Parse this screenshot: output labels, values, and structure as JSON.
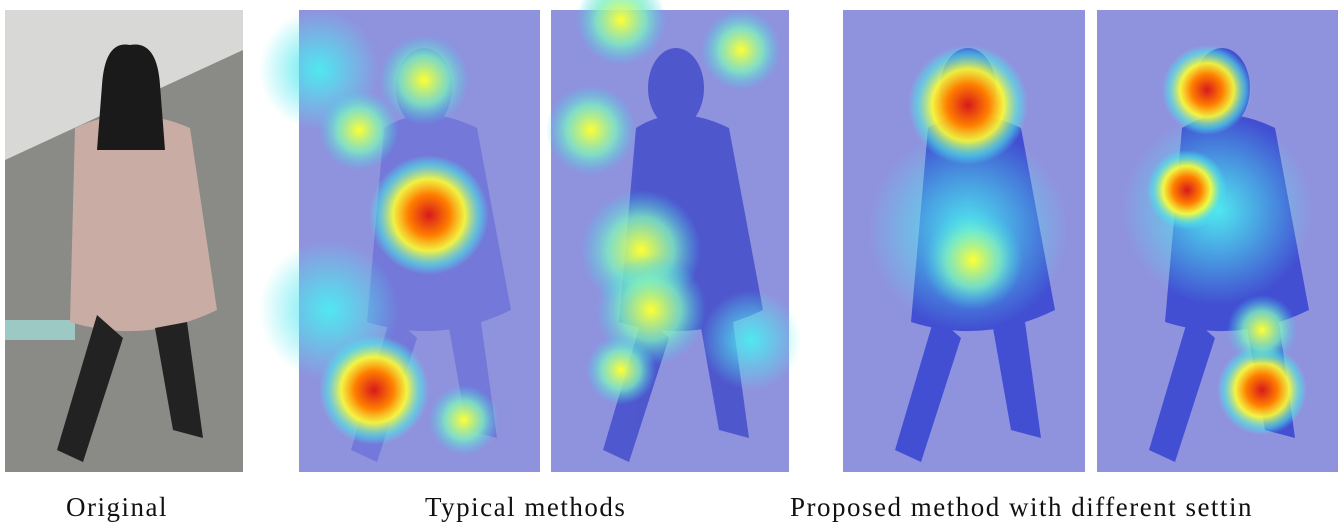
{
  "captions": {
    "original": "Original",
    "typical": "Typical methods",
    "proposed": "Proposed method with different settin"
  }
}
